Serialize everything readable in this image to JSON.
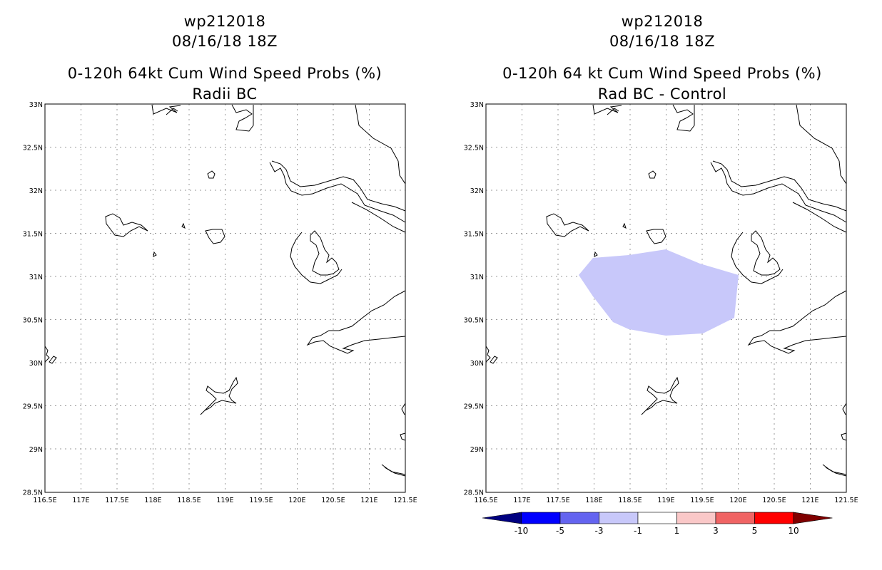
{
  "left_panel": {
    "title_line1": "wp212018",
    "title_line2": "08/16/18 18Z",
    "title_line3": "0-120h 64kt Cum Wind Speed Probs (%)",
    "title_line4": "Radii BC"
  },
  "right_panel": {
    "title_line1": "wp212018",
    "title_line2": "08/16/18 18Z",
    "title_line3": "0-120h 64 kt Cum Wind Speed Probs (%)",
    "title_line4": "Rad BC - Control"
  },
  "axes": {
    "lat_labels": [
      "33N",
      "32.5N",
      "32N",
      "31.5N",
      "31N",
      "30.5N",
      "30N",
      "29.5N",
      "29N",
      "28.5N"
    ],
    "lon_labels": [
      "116.5E",
      "117E",
      "117.5E",
      "118E",
      "118.5E",
      "119E",
      "119.5E",
      "120E",
      "120.5E",
      "121E",
      "121.5E"
    ]
  },
  "colorbar": {
    "labels": [
      "-10",
      "-5",
      "-3",
      "-1",
      "1",
      "3",
      "5",
      "10"
    ],
    "colors": [
      "#000080",
      "#0000ff",
      "#6464f0",
      "#c8c8fa",
      "#ffffff",
      "#fac8c8",
      "#f06464",
      "#ff0000",
      "#800000"
    ]
  },
  "shaded_region": {
    "category": "-3 to -1",
    "color": "#c8c8fa"
  }
}
